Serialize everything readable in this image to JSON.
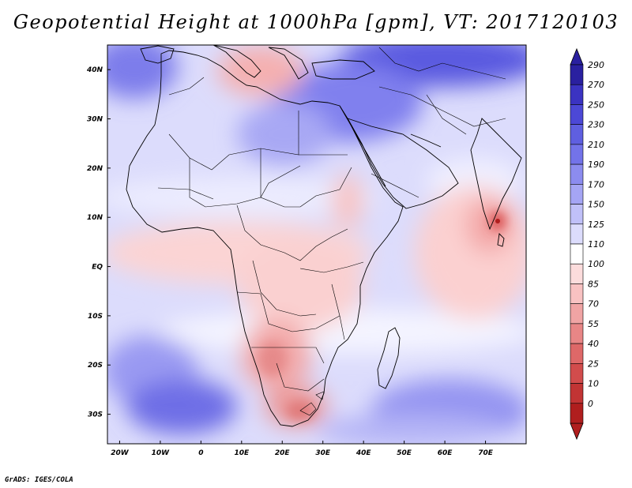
{
  "title": "Geopotential Height at 1000hPa [gpm], VT: 2017120103",
  "credit": "GrADS: IGES/COLA",
  "map": {
    "lon_range": [
      -23,
      80
    ],
    "lat_range": [
      -36,
      45
    ],
    "lon_labels": [
      "20W",
      "10W",
      "0",
      "10E",
      "20E",
      "30E",
      "40E",
      "50E",
      "60E",
      "70E"
    ],
    "lon_values": [
      -20,
      -10,
      0,
      10,
      20,
      30,
      40,
      50,
      60,
      70
    ],
    "lat_labels": [
      "40N",
      "30N",
      "20N",
      "10N",
      "EQ",
      "10S",
      "20S",
      "30S"
    ],
    "lat_values": [
      40,
      30,
      20,
      10,
      0,
      -10,
      -20,
      -30
    ]
  },
  "colorbar": {
    "levels": [
      "290",
      "270",
      "250",
      "230",
      "210",
      "190",
      "170",
      "150",
      "125",
      "110",
      "100",
      "85",
      "70",
      "55",
      "40",
      "25",
      "10",
      "0"
    ],
    "colors": [
      "#2a20a0",
      "#3b33c2",
      "#4c48d6",
      "#5f5fe0",
      "#7373e9",
      "#8c8cef",
      "#a5a5f4",
      "#c0c0f8",
      "#dcdcfc",
      "#ffffff",
      "#fcdcdc",
      "#f8c2c2",
      "#f0a4a4",
      "#e88686",
      "#de6868",
      "#d24c4c",
      "#c23434",
      "#b01e1e"
    ]
  },
  "colors": {
    "blue_dark": "#5a5ae0",
    "blue_mid": "#9090f0",
    "blue_light": "#cfcffa",
    "white": "#ffffff",
    "red_light": "#fbd6d6",
    "red_mid": "#f4acac",
    "red_dark": "#e07070"
  }
}
